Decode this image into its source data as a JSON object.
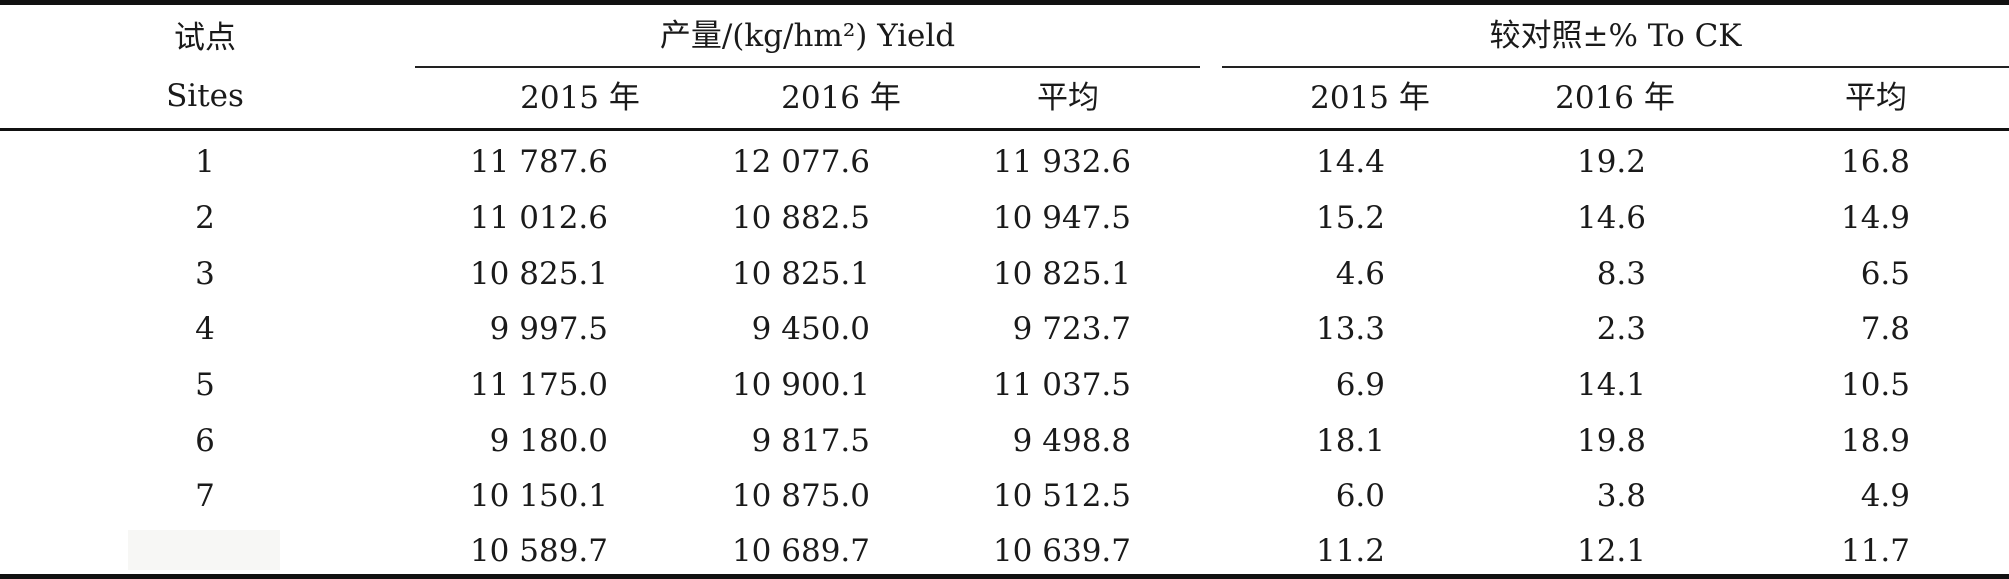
{
  "header": {
    "site_label": "试点",
    "site_label_en": "Sites",
    "yield_group": "产量/(kg/hm²) Yield",
    "ck_group": "较对照±% To CK",
    "col_2015": "2015 年",
    "col_2016": "2016 年",
    "col_avg": "平均"
  },
  "rows": [
    {
      "site": "1",
      "y2015": "11 787.6",
      "y2016": "12 077.6",
      "yavg": "11 932.6",
      "c2015": "14.4",
      "c2016": "19.2",
      "cavg": "16.8"
    },
    {
      "site": "2",
      "y2015": "11 012.6",
      "y2016": "10 882.5",
      "yavg": "10 947.5",
      "c2015": "15.2",
      "c2016": "14.6",
      "cavg": "14.9"
    },
    {
      "site": "3",
      "y2015": "10 825.1",
      "y2016": "10 825.1",
      "yavg": "10 825.1",
      "c2015": "4.6",
      "c2016": "8.3",
      "cavg": "6.5"
    },
    {
      "site": "4",
      "y2015": "9 997.5",
      "y2016": "9 450.0",
      "yavg": "9 723.7",
      "c2015": "13.3",
      "c2016": "2.3",
      "cavg": "7.8"
    },
    {
      "site": "5",
      "y2015": "11 175.0",
      "y2016": "10 900.1",
      "yavg": "11 037.5",
      "c2015": "6.9",
      "c2016": "14.1",
      "cavg": "10.5"
    },
    {
      "site": "6",
      "y2015": "9 180.0",
      "y2016": "9 817.5",
      "yavg": "9 498.8",
      "c2015": "18.1",
      "c2016": "19.8",
      "cavg": "18.9"
    },
    {
      "site": "7",
      "y2015": "10 150.1",
      "y2016": "10 875.0",
      "yavg": "10 512.5",
      "c2015": "6.0",
      "c2016": "3.8",
      "cavg": "4.9"
    },
    {
      "site": "",
      "y2015": "10 589.7",
      "y2016": "10 689.7",
      "yavg": "10 639.7",
      "c2015": "11.2",
      "c2016": "12.1",
      "cavg": "11.7"
    }
  ]
}
